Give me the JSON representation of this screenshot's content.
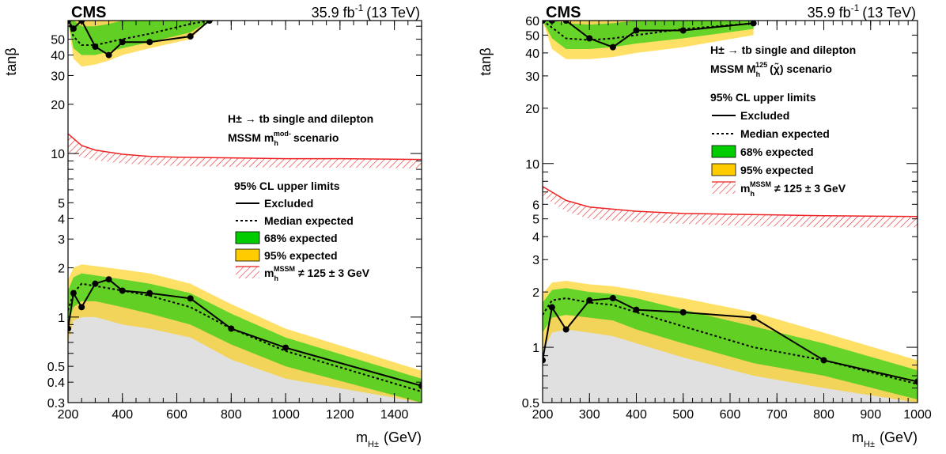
{
  "chart_data": [
    {
      "type": "area",
      "experiment": "CMS",
      "luminosity_label": "35.9 fb",
      "luminosity_exp": "-1",
      "energy_label": "(13 TeV)",
      "xlabel_main": "m",
      "xlabel_sub": "H±",
      "xlabel_unit": "(GeV)",
      "ylabel": "tanβ",
      "xlim": [
        200,
        1500
      ],
      "ylim": [
        0.3,
        65
      ],
      "yscale": "log",
      "x_ticks": [
        200,
        400,
        600,
        800,
        1000,
        1200,
        1400
      ],
      "y_ticks": [
        0.3,
        0.4,
        0.5,
        1,
        2,
        3,
        4,
        5,
        10,
        20,
        30,
        40,
        50
      ],
      "annotation_line1": "H± → tb single and dilepton",
      "annotation_line2_main": "MSSM m",
      "annotation_line2_sub": "h",
      "annotation_line2_sup": "mod-",
      "annotation_line2_tail": "scenario",
      "legend": {
        "title": "95% CL upper limits",
        "excluded": "Excluded",
        "median": "Median expected",
        "band68": "68% expected",
        "band95": "95% expected",
        "mh_main": "m",
        "mh_sub": "h",
        "mh_sup": "MSSM",
        "mh_tail": "≠ 125 ± 3 GeV"
      },
      "colors": {
        "band68": "#00cc00",
        "band95": "#ffcc00",
        "excluded": "#e0e0e0",
        "mh_hatch": "#ee2222"
      },
      "low": {
        "mass": [
          200,
          220,
          250,
          300,
          350,
          400,
          500,
          650,
          800,
          1000,
          1500
        ],
        "observed": [
          0.85,
          1.4,
          1.15,
          1.6,
          1.7,
          1.45,
          1.4,
          1.3,
          0.85,
          0.65,
          0.38
        ],
        "expected": [
          1.1,
          1.4,
          1.6,
          1.55,
          1.5,
          1.45,
          1.35,
          1.15,
          0.85,
          0.62,
          0.35
        ],
        "band68_low": [
          0.9,
          1.15,
          1.25,
          1.25,
          1.2,
          1.15,
          1.05,
          0.9,
          0.68,
          0.5,
          0.3
        ],
        "band68_high": [
          1.45,
          1.75,
          1.85,
          1.8,
          1.75,
          1.7,
          1.6,
          1.4,
          1.05,
          0.75,
          0.42
        ],
        "band95_low": [
          0.7,
          0.95,
          1.0,
          1.0,
          0.95,
          0.9,
          0.85,
          0.75,
          0.55,
          0.42,
          0.3
        ],
        "band95_high": [
          1.7,
          2.0,
          2.1,
          2.05,
          2.0,
          1.95,
          1.85,
          1.6,
          1.2,
          0.85,
          0.47
        ]
      },
      "high": {
        "mass": [
          200,
          220,
          250,
          300,
          350,
          400,
          500,
          650,
          720
        ],
        "observed": [
          65,
          58,
          65,
          45,
          40,
          48,
          48,
          52,
          65
        ],
        "expected": [
          65,
          52,
          46,
          46,
          48,
          50,
          54,
          62,
          65
        ],
        "band68_low": [
          65,
          44,
          40,
          40,
          42,
          44,
          48,
          55,
          65
        ],
        "band68_high": [
          65,
          65,
          60,
          60,
          62,
          65,
          65,
          65,
          65
        ],
        "band95_low": [
          65,
          38,
          34,
          35,
          37,
          40,
          44,
          50,
          65
        ],
        "band95_high": [
          65,
          65,
          65,
          65,
          65,
          65,
          65,
          65,
          65
        ]
      },
      "mh_band": {
        "mass": [
          200,
          250,
          300,
          400,
          500,
          600,
          800,
          1000,
          1200,
          1500
        ],
        "lower": [
          10.2,
          9.5,
          9.1,
          8.7,
          8.5,
          8.4,
          8.3,
          8.2,
          8.2,
          8.1
        ],
        "upper": [
          13.2,
          11.2,
          10.5,
          9.9,
          9.6,
          9.5,
          9.4,
          9.3,
          9.3,
          9.2
        ]
      }
    },
    {
      "type": "area",
      "experiment": "CMS",
      "luminosity_label": "35.9 fb",
      "luminosity_exp": "-1",
      "energy_label": "(13 TeV)",
      "xlabel_main": "m",
      "xlabel_sub": "H±",
      "xlabel_unit": "(GeV)",
      "ylabel": "tanβ",
      "xlim": [
        200,
        1000
      ],
      "ylim": [
        0.5,
        60
      ],
      "yscale": "log",
      "x_ticks": [
        200,
        300,
        400,
        500,
        600,
        700,
        800,
        900,
        1000
      ],
      "y_ticks": [
        0.5,
        1,
        2,
        3,
        4,
        5,
        6,
        10,
        20,
        30,
        40,
        50,
        60
      ],
      "annotation_line1": "H± → tb single and dilepton",
      "annotation_line2_main": "MSSM M",
      "annotation_line2_sub": "h",
      "annotation_line2_sup": "125",
      "annotation_line2_tail": "(χ̃) scenario",
      "legend": {
        "title": "95% CL upper limits",
        "excluded": "Excluded",
        "median": "Median expected",
        "band68": "68% expected",
        "band95": "95% expected",
        "mh_main": "m",
        "mh_sub": "h",
        "mh_sup": "MSSM",
        "mh_tail": "≠ 125 ± 3 GeV"
      },
      "colors": {
        "band68": "#00cc00",
        "band95": "#ffcc00",
        "excluded": "#e0e0e0",
        "mh_hatch": "#ee2222"
      },
      "low": {
        "mass": [
          200,
          220,
          250,
          300,
          350,
          400,
          500,
          650,
          800,
          1000
        ],
        "observed": [
          0.85,
          1.65,
          1.25,
          1.8,
          1.85,
          1.6,
          1.55,
          1.45,
          0.85,
          0.65
        ],
        "expected": [
          1.5,
          1.8,
          1.85,
          1.75,
          1.7,
          1.55,
          1.3,
          1.0,
          0.85,
          0.63
        ],
        "band68_low": [
          1.2,
          1.45,
          1.5,
          1.45,
          1.4,
          1.25,
          1.05,
          0.82,
          0.7,
          0.52
        ],
        "band68_high": [
          1.75,
          2.05,
          2.1,
          2.0,
          1.95,
          1.85,
          1.6,
          1.3,
          1.05,
          0.75
        ],
        "band95_low": [
          0.95,
          1.2,
          1.25,
          1.2,
          1.15,
          1.05,
          0.88,
          0.7,
          0.6,
          0.5
        ],
        "band95_high": [
          1.95,
          2.25,
          2.3,
          2.2,
          2.15,
          2.05,
          1.85,
          1.55,
          1.2,
          0.85
        ]
      },
      "high": {
        "mass": [
          200,
          220,
          250,
          300,
          350,
          400,
          500,
          650
        ],
        "observed": [
          60,
          60,
          60,
          48,
          43,
          53,
          53,
          58
        ],
        "expected": [
          60,
          55,
          48,
          47,
          48,
          50,
          54,
          58
        ],
        "band68_low": [
          60,
          48,
          42,
          42,
          43,
          45,
          48,
          54
        ],
        "band68_high": [
          60,
          60,
          58,
          57,
          58,
          60,
          60,
          60
        ],
        "band95_low": [
          60,
          42,
          37,
          37,
          38,
          40,
          43,
          50
        ],
        "band95_high": [
          60,
          60,
          60,
          60,
          60,
          60,
          60,
          60
        ]
      },
      "mh_band": {
        "mass": [
          200,
          250,
          300,
          400,
          500,
          600,
          700,
          800,
          1000
        ],
        "lower": [
          6.6,
          5.5,
          5.0,
          4.8,
          4.7,
          4.6,
          4.55,
          4.5,
          4.5
        ],
        "upper": [
          7.5,
          6.3,
          5.8,
          5.5,
          5.35,
          5.3,
          5.25,
          5.2,
          5.15
        ]
      }
    }
  ]
}
